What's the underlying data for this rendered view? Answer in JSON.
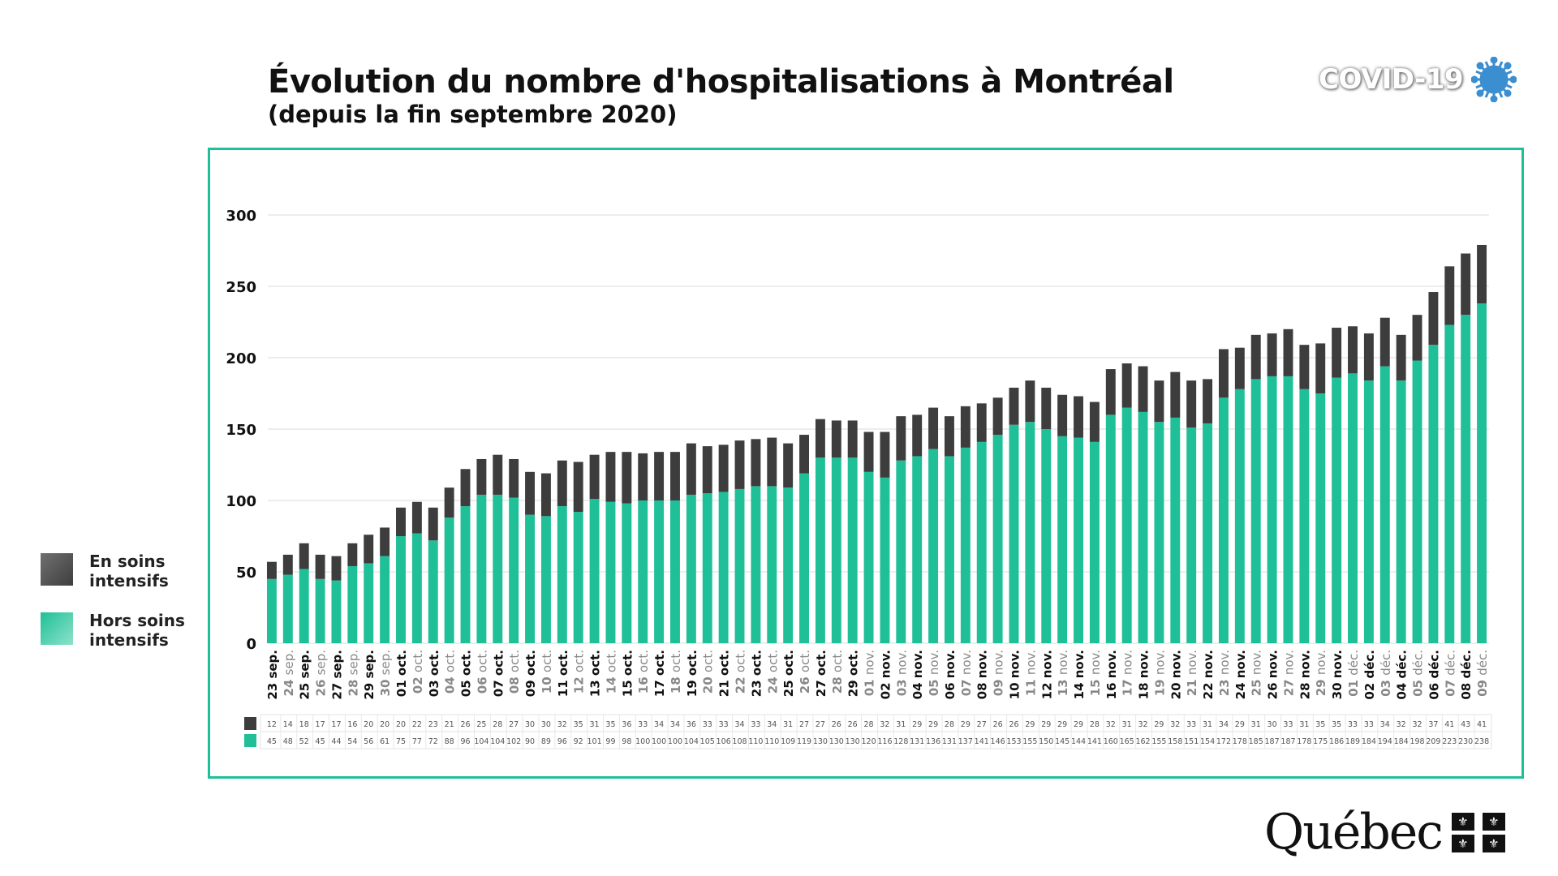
{
  "header": {
    "title": "Évolution du nombre d'hospitalisations à Montréal",
    "subtitle": "(depuis la fin septembre 2020)",
    "badge": "COVID-19",
    "badge_icon": "virus-icon"
  },
  "footer": {
    "logo_text": "Québec",
    "logo_icon": "fleur-de-lis-flag-icon"
  },
  "colors": {
    "icu": "#3d3d3d",
    "non_icu": "#1fbf97",
    "frame": "#1fbf97",
    "weekday_label": "#111111",
    "alt_label": "#888888"
  },
  "legend": [
    {
      "key": "icu",
      "label_line1": "En soins",
      "label_line2": "intensifs"
    },
    {
      "key": "non_icu",
      "label_line1": "Hors soins",
      "label_line2": "intensifs"
    }
  ],
  "chart_data": {
    "type": "bar",
    "stacked": true,
    "title": "Évolution du nombre d'hospitalisations à Montréal",
    "subtitle": "(depuis la fin septembre 2020)",
    "xlabel": "",
    "ylabel": "",
    "ylim": [
      0,
      300
    ],
    "yticks": [
      0,
      50,
      100,
      150,
      200,
      250,
      300
    ],
    "grid": true,
    "legend_position": "left",
    "categories": [
      "23 sep.",
      "24 sep.",
      "25 sep.",
      "26 sep.",
      "27 sep.",
      "28 sep.",
      "29 sep.",
      "30 sep.",
      "01 oct.",
      "02 oct.",
      "03 oct.",
      "04 oct.",
      "05 oct.",
      "06 oct.",
      "07 oct.",
      "08 oct.",
      "09 oct.",
      "10 oct.",
      "11 oct.",
      "12 oct.",
      "13 oct.",
      "14 oct.",
      "15 oct.",
      "16 oct.",
      "17 oct.",
      "18 oct.",
      "19 oct.",
      "20 oct.",
      "21 oct.",
      "22 oct.",
      "23 oct.",
      "24 oct.",
      "25 oct.",
      "26 oct.",
      "27 oct.",
      "28 oct.",
      "29 oct.",
      "01 nov.",
      "02 nov.",
      "03 nov.",
      "04 nov.",
      "05 nov.",
      "06 nov.",
      "07 nov.",
      "08 nov.",
      "09 nov.",
      "10 nov.",
      "11 nov.",
      "12 nov.",
      "13 nov.",
      "14 nov.",
      "15 nov.",
      "16 nov.",
      "17 nov.",
      "18 nov.",
      "19 nov.",
      "20 nov.",
      "21 nov.",
      "22 nov.",
      "23 nov.",
      "24 nov.",
      "25 nov.",
      "26 nov.",
      "27 nov.",
      "28 nov.",
      "29 nov.",
      "30 nov.",
      "01 déc.",
      "02 déc.",
      "03 déc.",
      "04 déc.",
      "05 déc.",
      "06 déc.",
      "07 déc.",
      "08 déc.",
      "09 déc."
    ],
    "series": [
      {
        "name": "Hors soins intensifs",
        "key": "non_icu",
        "values": [
          45,
          48,
          52,
          45,
          44,
          54,
          56,
          61,
          75,
          77,
          72,
          88,
          96,
          104,
          104,
          102,
          90,
          89,
          96,
          92,
          101,
          99,
          98,
          100,
          100,
          100,
          104,
          105,
          106,
          108,
          110,
          110,
          109,
          119,
          130,
          130,
          130,
          120,
          116,
          128,
          131,
          136,
          131,
          137,
          141,
          146,
          153,
          155,
          150,
          145,
          144,
          141,
          160,
          165,
          162,
          155,
          158,
          151,
          154,
          172,
          178,
          185,
          187,
          187,
          178,
          175,
          186,
          189,
          184,
          194,
          184,
          198,
          209,
          223,
          230,
          238
        ]
      },
      {
        "name": "En soins intensifs",
        "key": "icu",
        "values": [
          12,
          14,
          18,
          17,
          17,
          16,
          20,
          20,
          20,
          22,
          23,
          21,
          26,
          25,
          28,
          27,
          30,
          30,
          32,
          35,
          31,
          35,
          36,
          33,
          34,
          34,
          36,
          33,
          33,
          34,
          33,
          34,
          31,
          27,
          27,
          26,
          26,
          28,
          32,
          31,
          29,
          29,
          28,
          29,
          27,
          26,
          26,
          29,
          29,
          29,
          29,
          28,
          32,
          31,
          32,
          29,
          32,
          33,
          31,
          34,
          29,
          31,
          30,
          33,
          31,
          35,
          35,
          33,
          33,
          34,
          32,
          32,
          37,
          41,
          43,
          41
        ]
      }
    ]
  }
}
